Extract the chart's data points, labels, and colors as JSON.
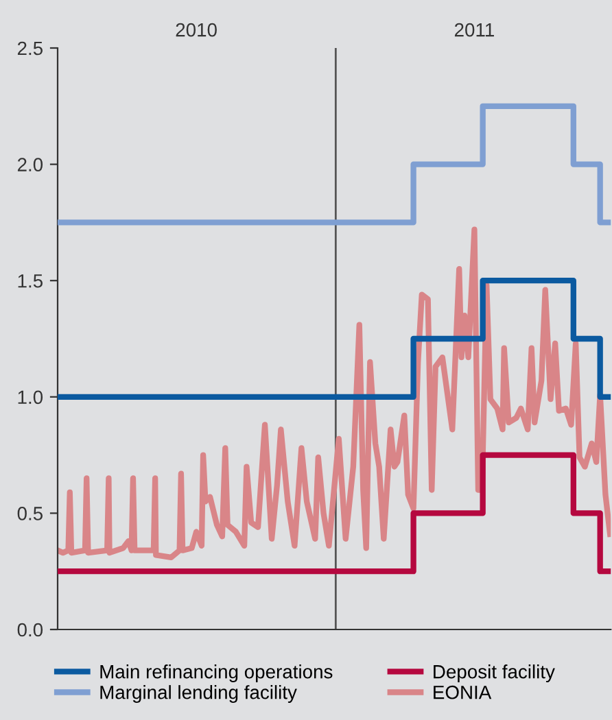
{
  "chart_data": {
    "type": "line",
    "xlim": [
      "2010-01-01",
      "2011-12-28"
    ],
    "xticks": [
      {
        "value": "2010-07-02",
        "label": "2010"
      },
      {
        "value": "2011-07-02",
        "label": "2011"
      }
    ],
    "ylim": [
      0,
      2.5
    ],
    "yticks": [
      {
        "value": 0,
        "label": "0.0"
      },
      {
        "value": 0.5,
        "label": "0.5"
      },
      {
        "value": 1,
        "label": "1.0"
      },
      {
        "value": 1.5,
        "label": "1.5"
      },
      {
        "value": 2,
        "label": "2.0"
      },
      {
        "value": 2.5,
        "label": "2.5"
      }
    ],
    "grid": false,
    "legend": "bottom",
    "ref_lines": [
      {
        "axis": "x",
        "value": "2011-01-01",
        "label": null,
        "color": "#555555"
      }
    ],
    "series": [
      {
        "name": "Main refinancing operations",
        "type": "step",
        "color": "#0b5aa0",
        "x": [
          "2010-01-01",
          "2011-04-13",
          "2011-07-13",
          "2011-11-09",
          "2011-12-14",
          "2011-12-28"
        ],
        "values": [
          1.0,
          1.25,
          1.5,
          1.25,
          1.0,
          1.0
        ]
      },
      {
        "name": "Marginal lending facility",
        "type": "step",
        "color": "#7f9fd2",
        "x": [
          "2010-01-01",
          "2011-04-13",
          "2011-07-13",
          "2011-11-09",
          "2011-12-14",
          "2011-12-28"
        ],
        "values": [
          1.75,
          2.0,
          2.25,
          2.0,
          1.75,
          1.75
        ]
      },
      {
        "name": "Deposit facility",
        "type": "step",
        "color": "#b5083f",
        "x": [
          "2010-01-01",
          "2011-04-13",
          "2011-07-13",
          "2011-11-09",
          "2011-12-14",
          "2011-12-28"
        ],
        "values": [
          0.25,
          0.5,
          0.75,
          0.5,
          0.25,
          0.25
        ]
      },
      {
        "name": "EONIA",
        "color": "#d98588",
        "x": [
          "2010-01-01",
          "2010-01-08",
          "2010-01-15",
          "2010-01-17",
          "2010-01-19",
          "2010-02-06",
          "2010-02-08",
          "2010-02-10",
          "2010-03-07",
          "2010-03-09",
          "2010-03-10",
          "2010-03-28",
          "2010-04-04",
          "2010-04-08",
          "2010-04-10",
          "2010-04-12",
          "2010-05-07",
          "2010-05-09",
          "2010-05-10",
          "2010-05-30",
          "2010-06-10",
          "2010-06-12",
          "2010-06-14",
          "2010-06-26",
          "2010-07-02",
          "2010-07-09",
          "2010-07-11",
          "2010-07-14",
          "2010-07-20",
          "2010-07-29",
          "2010-08-05",
          "2010-08-09",
          "2010-08-12",
          "2010-08-23",
          "2010-09-03",
          "2010-09-06",
          "2010-09-12",
          "2010-09-21",
          "2010-09-30",
          "2010-10-09",
          "2010-10-16",
          "2010-10-21",
          "2010-10-30",
          "2010-11-08",
          "2010-11-17",
          "2010-11-24",
          "2010-12-05",
          "2010-12-09",
          "2010-12-16",
          "2010-12-23",
          "2011-01-05",
          "2011-01-14",
          "2011-01-24",
          "2011-02-01",
          "2011-02-06",
          "2011-02-10",
          "2011-02-15",
          "2011-02-22",
          "2011-02-27",
          "2011-03-05",
          "2011-03-14",
          "2011-03-19",
          "2011-03-23",
          "2011-04-01",
          "2011-04-06",
          "2011-04-13",
          "2011-04-19",
          "2011-04-24",
          "2011-05-02",
          "2011-05-07",
          "2011-05-12",
          "2011-05-21",
          "2011-06-03",
          "2011-06-12",
          "2011-06-15",
          "2011-06-19",
          "2011-06-24",
          "2011-07-02",
          "2011-07-07",
          "2011-07-12",
          "2011-07-18",
          "2011-07-23",
          "2011-08-01",
          "2011-08-08",
          "2011-08-10",
          "2011-08-16",
          "2011-08-26",
          "2011-09-01",
          "2011-09-10",
          "2011-09-15",
          "2011-09-19",
          "2011-09-28",
          "2011-10-03",
          "2011-10-10",
          "2011-10-16",
          "2011-10-21",
          "2011-10-30",
          "2011-11-06",
          "2011-11-12",
          "2011-11-17",
          "2011-11-24",
          "2011-12-03",
          "2011-12-09",
          "2011-12-14",
          "2011-12-21",
          "2011-12-27"
        ],
        "values": [
          0.34,
          0.33,
          0.34,
          0.59,
          0.33,
          0.34,
          0.65,
          0.33,
          0.34,
          0.65,
          0.33,
          0.35,
          0.38,
          0.34,
          0.65,
          0.34,
          0.34,
          0.65,
          0.32,
          0.31,
          0.34,
          0.67,
          0.34,
          0.35,
          0.42,
          0.36,
          0.75,
          0.55,
          0.57,
          0.45,
          0.4,
          0.78,
          0.45,
          0.42,
          0.36,
          0.7,
          0.46,
          0.44,
          0.88,
          0.39,
          0.62,
          0.86,
          0.55,
          0.36,
          0.78,
          0.55,
          0.39,
          0.74,
          0.5,
          0.36,
          0.82,
          0.39,
          0.7,
          1.31,
          0.6,
          0.35,
          1.15,
          0.8,
          0.7,
          0.39,
          0.86,
          0.7,
          0.72,
          0.92,
          0.58,
          0.52,
          1.15,
          1.44,
          1.42,
          0.6,
          1.13,
          1.17,
          0.86,
          1.55,
          1.17,
          1.35,
          1.17,
          1.72,
          0.6,
          0.6,
          1.48,
          0.99,
          0.95,
          0.86,
          1.21,
          0.89,
          0.91,
          0.95,
          0.86,
          1.21,
          0.89,
          1.07,
          1.46,
          0.99,
          1.23,
          0.94,
          0.95,
          0.88,
          1.23,
          0.74,
          0.7,
          0.8,
          0.72,
          1.01,
          0.58,
          0.41
        ]
      }
    ]
  }
}
